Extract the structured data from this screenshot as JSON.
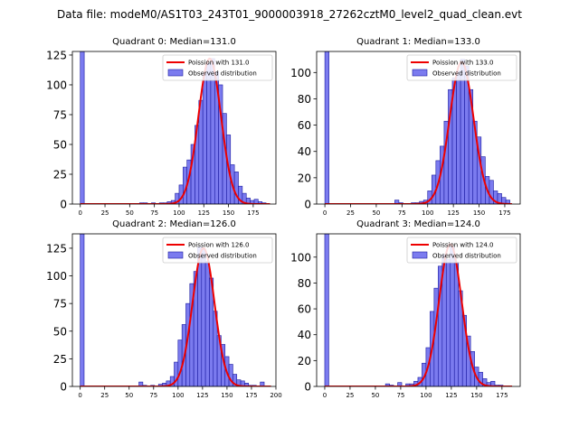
{
  "suptitle": "Data file: modeM0/AS1T03_243T01_9000003918_27262cztM0_level2_quad_clean.evt",
  "colors": {
    "bar_fill": "#7b7bef",
    "bar_edge": "#1a1aa0",
    "fit": "#ee0000",
    "axis": "#000000"
  },
  "chart_data": [
    {
      "type": "bar",
      "title": "Quadrant 0: Median=131.0",
      "xlim": [
        -8,
        198
      ],
      "ylim": [
        0,
        128
      ],
      "xticks": [
        0,
        25,
        50,
        75,
        100,
        125,
        150,
        175
      ],
      "yticks": [
        0,
        25,
        50,
        75,
        100,
        125
      ],
      "bin_width": 4,
      "legend": {
        "location": "top-right",
        "fit_label": "Poission with 131.0",
        "hist_label": "Observed distribution"
      },
      "fit": {
        "label": "Poission with 131.0",
        "center": 131.0,
        "sigma": 11.4,
        "peak": 122,
        "x_range": [
          0,
          192
        ]
      },
      "bins": [
        [
          0,
          128
        ],
        [
          60,
          1
        ],
        [
          64,
          1
        ],
        [
          72,
          1
        ],
        [
          80,
          1
        ],
        [
          84,
          1
        ],
        [
          88,
          2
        ],
        [
          92,
          3
        ],
        [
          96,
          9
        ],
        [
          100,
          16
        ],
        [
          104,
          31
        ],
        [
          108,
          37
        ],
        [
          112,
          50
        ],
        [
          116,
          66
        ],
        [
          120,
          87
        ],
        [
          124,
          110
        ],
        [
          128,
          118
        ],
        [
          132,
          122
        ],
        [
          136,
          111
        ],
        [
          140,
          100
        ],
        [
          144,
          76
        ],
        [
          148,
          58
        ],
        [
          152,
          33
        ],
        [
          156,
          27
        ],
        [
          160,
          15
        ],
        [
          164,
          9
        ],
        [
          168,
          5
        ],
        [
          172,
          3
        ],
        [
          176,
          4
        ],
        [
          180,
          2
        ],
        [
          184,
          1
        ]
      ]
    },
    {
      "type": "bar",
      "title": "Quadrant 1: Median=133.0",
      "xlim": [
        -8,
        190
      ],
      "ylim": [
        0,
        116
      ],
      "xticks": [
        0,
        25,
        50,
        75,
        100,
        125,
        150,
        175
      ],
      "yticks": [
        0,
        20,
        40,
        60,
        80,
        100
      ],
      "bin_width": 4,
      "legend": {
        "location": "top-right",
        "fit_label": "Poission with 133.0",
        "hist_label": "Observed distribution"
      },
      "fit": {
        "label": "Poission with 133.0",
        "center": 133.0,
        "sigma": 11.6,
        "peak": 108,
        "x_range": [
          0,
          182
        ]
      },
      "bins": [
        [
          0,
          116
        ],
        [
          68,
          3
        ],
        [
          72,
          1
        ],
        [
          84,
          1
        ],
        [
          88,
          1
        ],
        [
          92,
          2
        ],
        [
          96,
          3
        ],
        [
          100,
          10
        ],
        [
          104,
          22
        ],
        [
          108,
          33
        ],
        [
          112,
          44
        ],
        [
          116,
          63
        ],
        [
          120,
          87
        ],
        [
          124,
          96
        ],
        [
          128,
          101
        ],
        [
          132,
          110
        ],
        [
          136,
          105
        ],
        [
          140,
          87
        ],
        [
          144,
          63
        ],
        [
          148,
          51
        ],
        [
          152,
          36
        ],
        [
          156,
          21
        ],
        [
          160,
          18
        ],
        [
          164,
          10
        ],
        [
          168,
          8
        ],
        [
          172,
          5
        ],
        [
          176,
          3
        ]
      ]
    },
    {
      "type": "bar",
      "title": "Quadrant 2: Median=126.0",
      "xlim": [
        -8,
        200
      ],
      "ylim": [
        0,
        138
      ],
      "xticks": [
        0,
        25,
        50,
        75,
        100,
        125,
        150,
        175,
        200
      ],
      "yticks": [
        0,
        25,
        50,
        75,
        100,
        125
      ],
      "bin_width": 4,
      "legend": {
        "location": "top-right",
        "fit_label": "Poission with 126.0",
        "hist_label": "Observed distribution"
      },
      "fit": {
        "label": "Poission with 126.0",
        "center": 126.0,
        "sigma": 11.2,
        "peak": 125,
        "x_range": [
          0,
          195
        ]
      },
      "bins": [
        [
          0,
          138
        ],
        [
          60,
          4
        ],
        [
          64,
          1
        ],
        [
          72,
          1
        ],
        [
          80,
          2
        ],
        [
          84,
          3
        ],
        [
          88,
          5
        ],
        [
          92,
          9
        ],
        [
          96,
          22
        ],
        [
          100,
          42
        ],
        [
          104,
          56
        ],
        [
          108,
          75
        ],
        [
          112,
          93
        ],
        [
          116,
          104
        ],
        [
          120,
          126
        ],
        [
          124,
          124
        ],
        [
          128,
          113
        ],
        [
          132,
          98
        ],
        [
          136,
          68
        ],
        [
          140,
          46
        ],
        [
          144,
          38
        ],
        [
          148,
          27
        ],
        [
          152,
          20
        ],
        [
          156,
          11
        ],
        [
          160,
          6
        ],
        [
          164,
          5
        ],
        [
          168,
          3
        ],
        [
          172,
          1
        ],
        [
          176,
          1
        ],
        [
          184,
          4
        ]
      ]
    },
    {
      "type": "bar",
      "title": "Quadrant 3: Median=124.0",
      "xlim": [
        -8,
        193
      ],
      "ylim": [
        0,
        118
      ],
      "xticks": [
        0,
        25,
        50,
        75,
        100,
        125,
        150,
        175
      ],
      "yticks": [
        0,
        20,
        40,
        60,
        80,
        100
      ],
      "bin_width": 4,
      "legend": {
        "location": "top-right",
        "fit_label": "Poission with 124.0",
        "hist_label": "Observed distribution"
      },
      "fit": {
        "label": "Poission with 124.0",
        "center": 124.0,
        "sigma": 11.1,
        "peak": 110,
        "x_range": [
          0,
          185
        ]
      },
      "bins": [
        [
          0,
          118
        ],
        [
          60,
          2
        ],
        [
          64,
          1
        ],
        [
          72,
          3
        ],
        [
          80,
          2
        ],
        [
          84,
          2
        ],
        [
          88,
          4
        ],
        [
          92,
          7
        ],
        [
          96,
          18
        ],
        [
          100,
          30
        ],
        [
          104,
          58
        ],
        [
          108,
          76
        ],
        [
          112,
          93
        ],
        [
          116,
          102
        ],
        [
          120,
          98
        ],
        [
          124,
          108
        ],
        [
          128,
          96
        ],
        [
          132,
          74
        ],
        [
          136,
          55
        ],
        [
          140,
          39
        ],
        [
          144,
          27
        ],
        [
          148,
          15
        ],
        [
          152,
          11
        ],
        [
          156,
          6
        ],
        [
          160,
          3
        ],
        [
          164,
          4
        ],
        [
          168,
          1
        ],
        [
          172,
          1
        ]
      ]
    }
  ]
}
